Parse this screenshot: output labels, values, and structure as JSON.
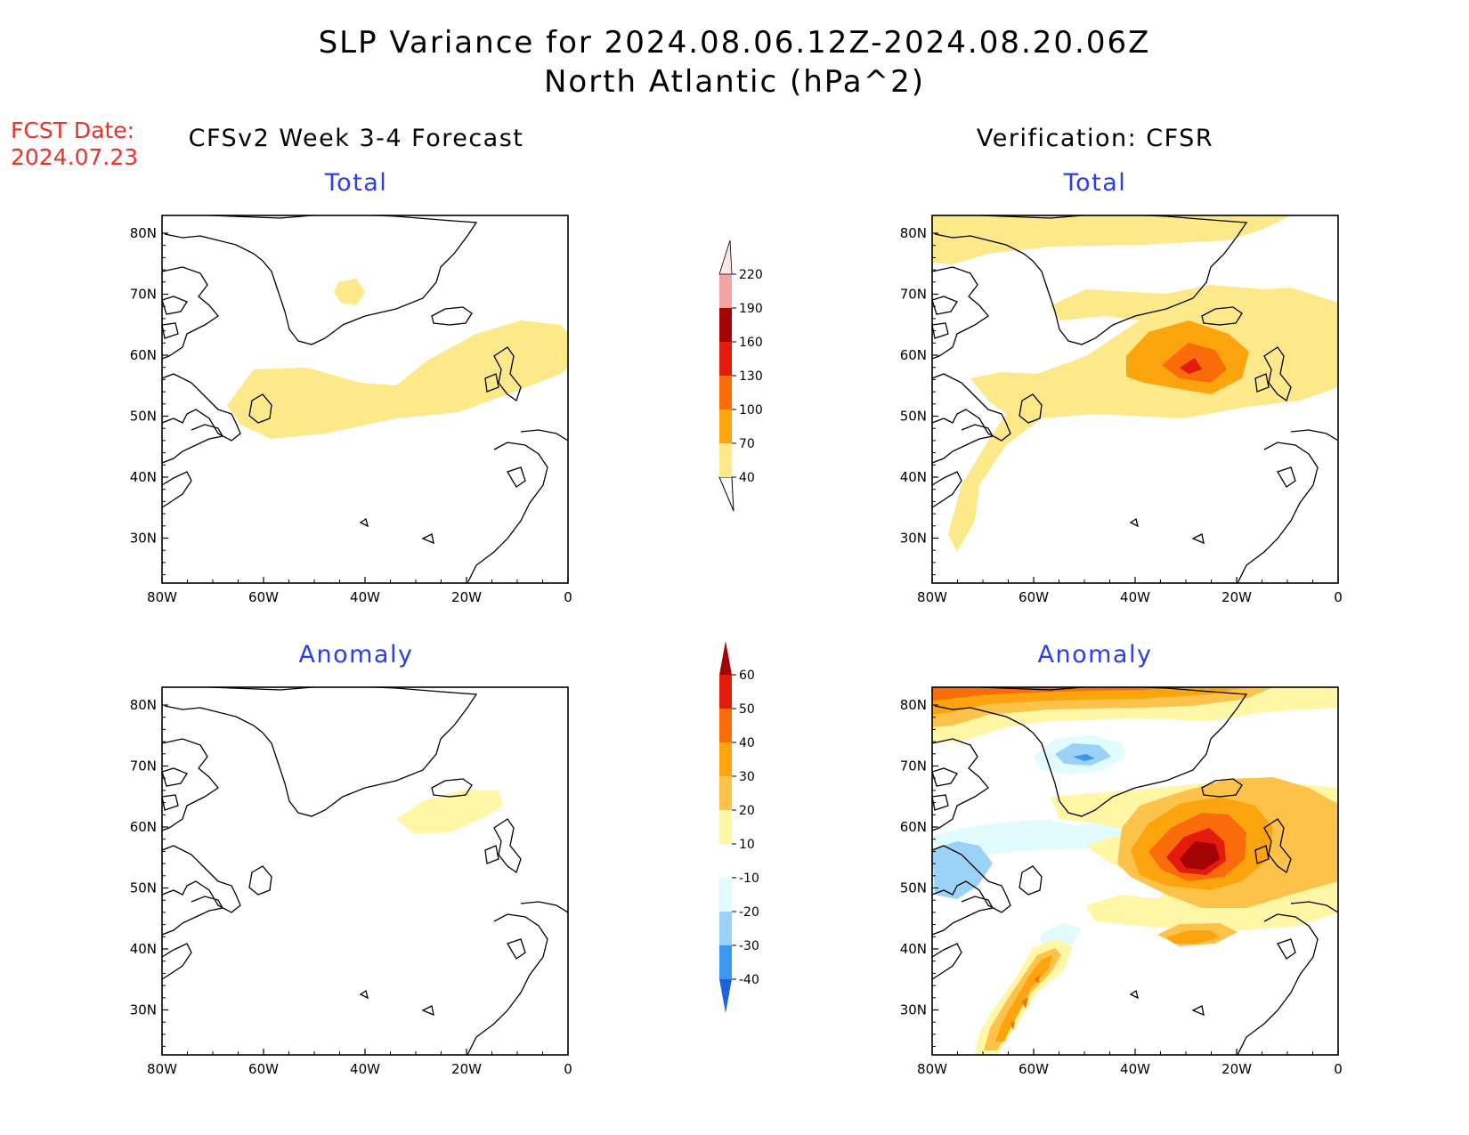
{
  "title": {
    "line1": "SLP Variance for 2024.08.06.12Z-2024.08.20.06Z",
    "line2": "North Atlantic (hPa^2)"
  },
  "fcst_date": {
    "label": "FCST Date:",
    "value": "2024.07.23"
  },
  "columns": {
    "left": "CFSv2 Week 3-4 Forecast",
    "right": "Verification: CFSR"
  },
  "panel_titles": {
    "fcst_total": "Total",
    "obs_total": "Total",
    "fcst_anom": "Anomaly",
    "obs_anom": "Anomaly"
  },
  "map": {
    "lon_ticks": [
      "80W",
      "60W",
      "40W",
      "20W",
      "0"
    ],
    "lat_ticks": [
      "80N",
      "70N",
      "60N",
      "50N",
      "40N",
      "30N"
    ],
    "coast_color": "#000000",
    "frame_color": "#000000"
  },
  "colorbar_total": {
    "levels": [
      "40",
      "70",
      "100",
      "130",
      "160",
      "190",
      "220"
    ],
    "colors": [
      "#fde88a",
      "#fca40e",
      "#fa6b0a",
      "#e21b0c",
      "#a30303",
      "#f4a3a3",
      "#fde7e5"
    ]
  },
  "colorbar_anom": {
    "levels": [
      "60",
      "50",
      "40",
      "30",
      "20",
      "10",
      "-10",
      "-20",
      "-30",
      "-40"
    ],
    "colors": [
      "#a30303",
      "#e21b0c",
      "#fa6b0a",
      "#fca40e",
      "#fcc24a",
      "#fff6a6",
      "#ffffff",
      "#e1fbff",
      "#9bd2f8",
      "#3e97ee",
      "#1c63dd"
    ]
  }
}
